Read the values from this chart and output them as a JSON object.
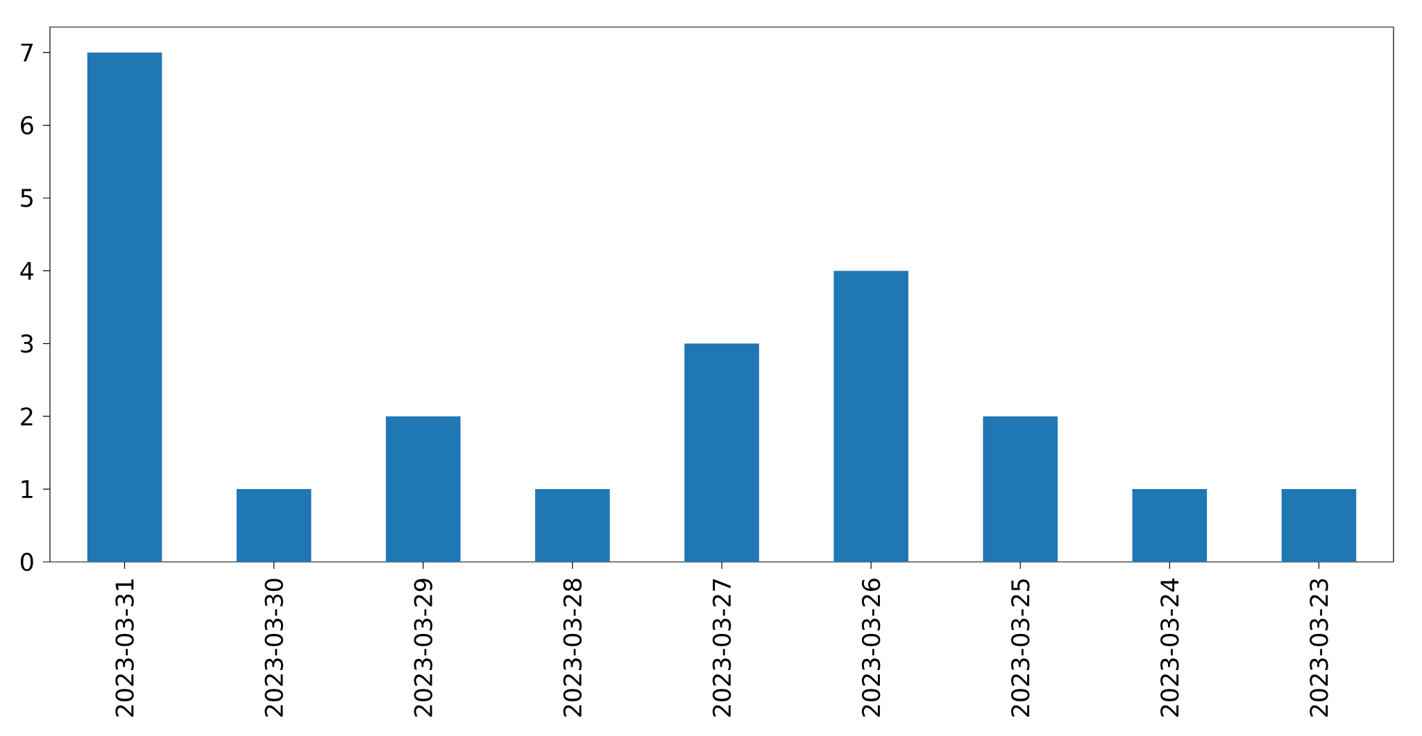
{
  "chart_data": {
    "type": "bar",
    "categories": [
      "2023-03-31",
      "2023-03-30",
      "2023-03-29",
      "2023-03-28",
      "2023-03-27",
      "2023-03-26",
      "2023-03-25",
      "2023-03-24",
      "2023-03-23"
    ],
    "values": [
      7,
      1,
      2,
      1,
      3,
      4,
      2,
      1,
      1
    ],
    "color": "#1f77b4",
    "ylim": [
      0,
      7.35
    ],
    "yticks": [
      0,
      1,
      2,
      3,
      4,
      5,
      6,
      7
    ],
    "grid": false
  }
}
